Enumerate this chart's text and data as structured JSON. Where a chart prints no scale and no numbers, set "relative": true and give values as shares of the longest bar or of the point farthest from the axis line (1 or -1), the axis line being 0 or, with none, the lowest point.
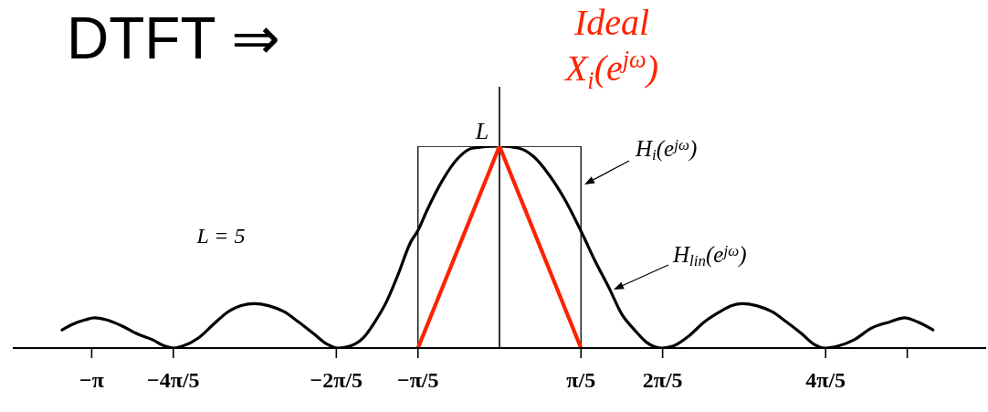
{
  "chart_data": {
    "type": "line",
    "title": "DTFT ⇒",
    "relative": true,
    "marker": "none",
    "xlim": [
      -3.75,
      3.75
    ],
    "xticks": [
      {
        "value": -3.142,
        "label": "−π"
      },
      {
        "value": -2.513,
        "label": "−4π/5"
      },
      {
        "value": -1.257,
        "label": "−2π/5"
      },
      {
        "value": -0.628,
        "label": "−π/5"
      },
      {
        "value": 0.628,
        "label": "π/5"
      },
      {
        "value": 1.257,
        "label": "2π/5"
      },
      {
        "value": 2.513,
        "label": "4π/5"
      },
      {
        "value": 3.142,
        "label": null
      }
    ],
    "ref_lines": [
      {
        "axis": "x",
        "value": 0,
        "color": "#000000"
      }
    ],
    "annotations": [
      {
        "text": "L",
        "x": 0,
        "y": 1
      },
      "L = 5"
    ],
    "series": [
      {
        "name": "H$_{i}$(e$^{jω}$)",
        "color": "#000000",
        "x": [
          -0.628,
          -0.628,
          0.628,
          0.628
        ],
        "values": [
          0,
          1,
          1,
          0
        ]
      },
      {
        "name": "H$_{lin}$(e$^{jω}$)",
        "color": "#000000",
        "x": [
          -3.37,
          -3.28,
          -3.19,
          -3.12,
          -3.03,
          -2.91,
          -2.79,
          -2.67,
          -2.58,
          -2.51,
          -2.44,
          -2.32,
          -2.2,
          -2.09,
          -1.99,
          -1.89,
          -1.78,
          -1.66,
          -1.55,
          -1.43,
          -1.33,
          -1.24,
          -1.15,
          -1.05,
          -0.96,
          -0.87,
          -0.79,
          -0.68,
          -0.63,
          -0.56,
          -0.44,
          -0.32,
          -0.21,
          0,
          0.15,
          0.26,
          0.38,
          0.5,
          0.65,
          0.73,
          0.85,
          0.94,
          1.04,
          1.13,
          1.25,
          1.34,
          1.46,
          1.58,
          1.7,
          1.79,
          1.87,
          1.98,
          2.1,
          2.21,
          2.33,
          2.42,
          2.51,
          2.61,
          2.73,
          2.87,
          3.01,
          3.12,
          3.22,
          3.34
        ],
        "values": [
          0.09,
          0.12,
          0.14,
          0.15,
          0.14,
          0.11,
          0.07,
          0.04,
          0.01,
          0,
          0.01,
          0.05,
          0.12,
          0.18,
          0.21,
          0.22,
          0.21,
          0.18,
          0.13,
          0.07,
          0.02,
          0,
          0.01,
          0.05,
          0.13,
          0.23,
          0.35,
          0.53,
          0.58,
          0.68,
          0.83,
          0.94,
          0.99,
          1,
          0.99,
          0.95,
          0.86,
          0.74,
          0.55,
          0.44,
          0.29,
          0.17,
          0.09,
          0.03,
          0,
          0.01,
          0.06,
          0.13,
          0.18,
          0.21,
          0.22,
          0.21,
          0.18,
          0.13,
          0.07,
          0.02,
          0,
          0.01,
          0.04,
          0.1,
          0.13,
          0.15,
          0.13,
          0.09
        ]
      },
      {
        "name": "Ideal X$_{i}$(e$^{jω}$)",
        "color": "#ff2200",
        "x": [
          -0.628,
          0,
          0.628
        ],
        "values": [
          0,
          1,
          0
        ]
      }
    ]
  }
}
